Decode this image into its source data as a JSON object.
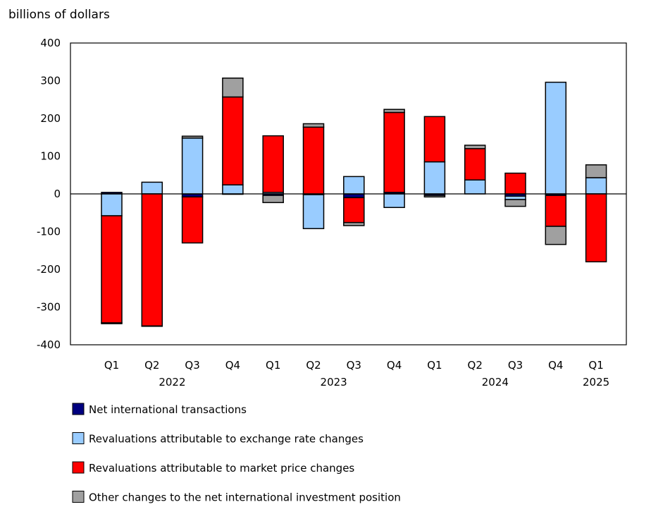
{
  "chart_data": {
    "type": "bar",
    "stacked": true,
    "ylabel": "billions of dollars",
    "ylim": [
      -400,
      400
    ],
    "yticks": [
      400,
      300,
      200,
      100,
      0,
      -100,
      -200,
      -300,
      -400
    ],
    "grid": false,
    "legend_position": "bottom",
    "categories": [
      "Q1",
      "Q2",
      "Q3",
      "Q4",
      "Q1",
      "Q2",
      "Q3",
      "Q4",
      "Q1",
      "Q2",
      "Q3",
      "Q4",
      "Q1"
    ],
    "year_labels": [
      {
        "label": "2022",
        "quarters": [
          0,
          3
        ]
      },
      {
        "label": "2023",
        "quarters": [
          4,
          7
        ]
      },
      {
        "label": "2024",
        "quarters": [
          8,
          11
        ]
      },
      {
        "label": "2025",
        "quarters": [
          12,
          12
        ]
      }
    ],
    "series": [
      {
        "name": "Net international transactions",
        "color": "#000080",
        "values": [
          4,
          0,
          -8,
          -1,
          -4,
          -2,
          -10,
          4,
          -4,
          0,
          -6,
          -4,
          0
        ]
      },
      {
        "name": "Revaluations attributable to exchange rate changes",
        "color": "#99ccff",
        "values": [
          -58,
          31,
          148,
          24,
          4,
          -90,
          46,
          -36,
          85,
          37,
          -9,
          296,
          43
        ]
      },
      {
        "name": "Revaluations attributable to market price changes",
        "color": "#ff0000",
        "values": [
          -284,
          -350,
          -122,
          233,
          150,
          177,
          -66,
          212,
          120,
          83,
          55,
          -82,
          -180
        ]
      },
      {
        "name": "Other changes to the net international investment position",
        "color": "#a0a0a0",
        "values": [
          -2,
          -1,
          5,
          50,
          -19,
          9,
          -8,
          8,
          -4,
          9,
          -18,
          -48,
          34
        ]
      }
    ]
  }
}
